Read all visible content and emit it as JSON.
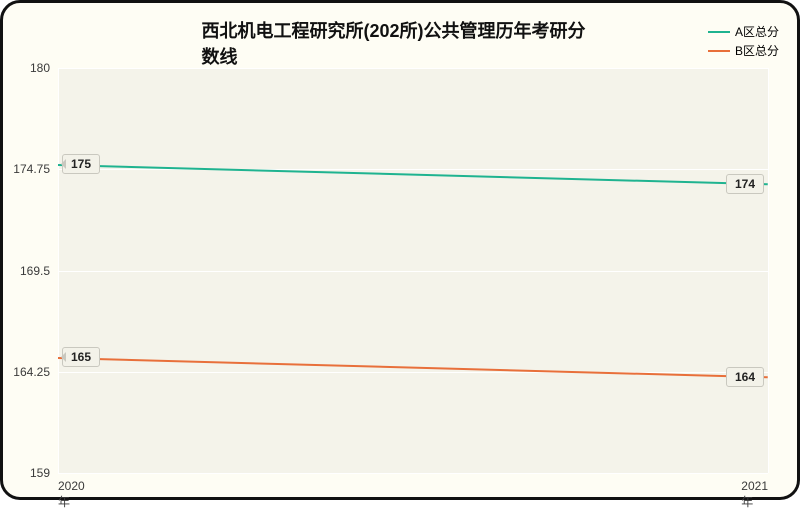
{
  "chart": {
    "type": "line",
    "title": "西北机电工程研究所(202所)公共管理历年考研分数线",
    "title_fontsize": 18,
    "title_color": "#111111",
    "container_bg": "#fefdf4",
    "container_border": "#111111",
    "plot_bg": "#f4f3ea",
    "grid_color": "#ffffff",
    "tick_color": "#3a3a3a",
    "y_axis": {
      "min": 159,
      "max": 180,
      "ticks": [
        159,
        164.25,
        169.5,
        174.75,
        180
      ],
      "tick_labels": [
        "159",
        "164.25",
        "169.5",
        "174.75",
        "180"
      ]
    },
    "x_axis": {
      "categories": [
        "2020年",
        "2021年"
      ]
    },
    "series": [
      {
        "name": "A区总分",
        "color": "#1fb390",
        "values": [
          175,
          174
        ],
        "labels": [
          "175",
          "174"
        ]
      },
      {
        "name": "B区总分",
        "color": "#e86f3a",
        "values": [
          165,
          164
        ],
        "labels": [
          "165",
          "164"
        ]
      }
    ],
    "label_box_bg": "#f3f2e9",
    "label_box_border": "#c9c8bf"
  }
}
